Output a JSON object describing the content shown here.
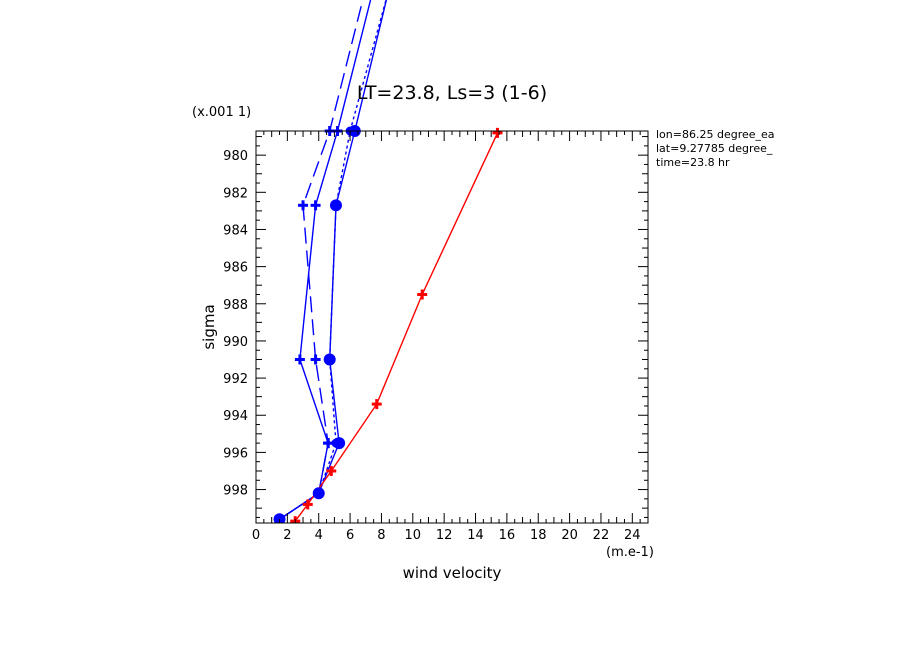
{
  "chart_data": {
    "type": "line",
    "title": "LT=23.8, Ls=3 (1-6)",
    "xlabel": "wind velocity",
    "ylabel": "sigma",
    "x_unit": "(m.e-1)",
    "y_unit": "(x.001 1)",
    "annotations": [
      "lon=86.25 degree_ea",
      "lat=9.27785 degree_",
      "time=23.8 hr"
    ],
    "xlim": [
      0,
      25
    ],
    "ylim": [
      999.8,
      978.7
    ],
    "x_ticks": [
      "0",
      "2",
      "4",
      "6",
      "8",
      "10",
      "12",
      "14",
      "16",
      "18",
      "20",
      "22",
      "24"
    ],
    "y_ticks": [
      "980",
      "982",
      "984",
      "986",
      "988",
      "990",
      "992",
      "994",
      "996",
      "998"
    ],
    "grid": false,
    "series": [
      {
        "style": "solid",
        "color": "#0000ff",
        "marker": "circle-large",
        "points": [
          [
            1.5,
            999.6
          ],
          [
            4.0,
            998.2
          ],
          [
            5.3,
            995.5
          ],
          [
            4.7,
            991.0
          ],
          [
            5.1,
            982.7
          ],
          [
            6.3,
            978.7
          ],
          [
            8.5,
            971.0
          ]
        ]
      },
      {
        "style": "dotted",
        "color": "#0000ff",
        "marker": "circle",
        "points": [
          [
            1.5,
            999.6
          ],
          [
            4.0,
            998.2
          ],
          [
            5.1,
            995.5
          ],
          [
            4.7,
            991.0
          ],
          [
            5.1,
            982.7
          ],
          [
            6.0,
            978.7
          ],
          [
            8.5,
            971.0
          ]
        ]
      },
      {
        "style": "solid",
        "color": "#0000ff",
        "marker": "plus",
        "points": [
          [
            1.5,
            999.6
          ],
          [
            4.0,
            998.2
          ],
          [
            4.6,
            995.5
          ],
          [
            2.8,
            991.0
          ],
          [
            3.8,
            982.7
          ],
          [
            5.2,
            978.7
          ],
          [
            7.5,
            971.0
          ]
        ]
      },
      {
        "style": "dashed",
        "color": "#0000ff",
        "marker": "plus",
        "points": [
          [
            1.5,
            999.6
          ],
          [
            4.0,
            998.2
          ],
          [
            4.6,
            995.5
          ],
          [
            3.8,
            991.0
          ],
          [
            3.0,
            982.7
          ],
          [
            4.7,
            978.7
          ],
          [
            7.0,
            971.0
          ]
        ]
      },
      {
        "style": "solid",
        "color": "#ff0000",
        "marker": "plus",
        "points": [
          [
            2.5,
            999.7
          ],
          [
            3.3,
            998.8
          ],
          [
            4.8,
            997.0
          ],
          [
            7.7,
            993.4
          ],
          [
            10.6,
            987.5
          ],
          [
            15.4,
            978.8
          ]
        ]
      }
    ]
  }
}
